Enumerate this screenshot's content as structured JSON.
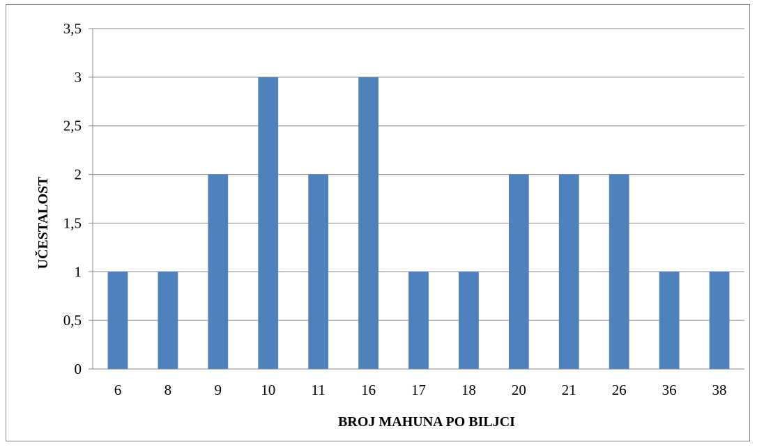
{
  "chart_data": {
    "type": "bar",
    "categories": [
      "6",
      "8",
      "9",
      "10",
      "11",
      "16",
      "17",
      "18",
      "20",
      "21",
      "26",
      "36",
      "38"
    ],
    "values": [
      1,
      1,
      2,
      3,
      2,
      3,
      1,
      1,
      2,
      2,
      2,
      1,
      1
    ],
    "title": "",
    "xlabel": "BROJ MAHUNA PO BILJCI",
    "ylabel": "UČESTALOST",
    "ylim": [
      0,
      3.5
    ],
    "yticks": [
      "0",
      "0,5",
      "1",
      "1,5",
      "2",
      "2,5",
      "3",
      "3,5"
    ],
    "grid": true,
    "legend": "none",
    "colors": {
      "bar": "#4f81bd",
      "grid": "#868686",
      "axis": "#868686",
      "border": "#868686"
    }
  }
}
